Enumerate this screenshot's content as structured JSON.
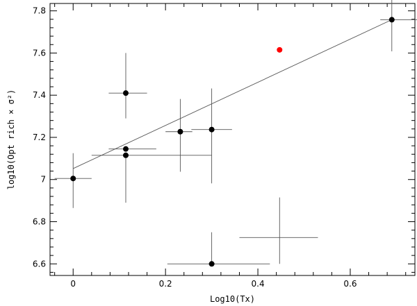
{
  "chart_data": {
    "type": "scatter",
    "xlabel": "Log10(Tx)",
    "ylabel": "log10(Opt rich × σ²)",
    "xlim": [
      -0.05,
      0.74
    ],
    "ylim": [
      6.545,
      7.835
    ],
    "x_ticks": [
      0,
      0.2,
      0.4,
      0.6
    ],
    "x_tick_labels": [
      "0",
      "0.2",
      "0.4",
      "0.6"
    ],
    "y_ticks": [
      6.6,
      6.8,
      7,
      7.2,
      7.4,
      7.6,
      7.8
    ],
    "y_tick_labels": [
      "6.6",
      "6.8",
      "7",
      "7.2",
      "7.4",
      "7.6",
      "7.8"
    ],
    "points": [
      {
        "x": 0.0,
        "y": 7.005,
        "xerr": [
          0.04,
          0.04
        ],
        "yerr": [
          0.14,
          0.12
        ],
        "marker": "filled-circle",
        "color": "#000000"
      },
      {
        "x": 0.114,
        "y": 7.41,
        "xerr": [
          0.037,
          0.046
        ],
        "yerr": [
          0.12,
          0.19
        ],
        "marker": "filled-circle",
        "color": "#000000"
      },
      {
        "x": 0.114,
        "y": 7.145,
        "xerr": [
          0.037,
          0.066
        ],
        "yerr": [
          0.0,
          0.0
        ],
        "marker": "filled-circle",
        "color": "#000000"
      },
      {
        "x": 0.114,
        "y": 7.115,
        "xerr": [
          0.074,
          0.186
        ],
        "yerr": [
          0.225,
          0.0
        ],
        "marker": "filled-circle",
        "color": "#000000"
      },
      {
        "x": 0.232,
        "y": 7.227,
        "xerr": [
          0.032,
          0.026
        ],
        "yerr": [
          0.19,
          0.155
        ],
        "marker": "filled-circle",
        "color": "#000000"
      },
      {
        "x": 0.3,
        "y": 7.237,
        "xerr": [
          0.044,
          0.044
        ],
        "yerr": [
          0.255,
          0.195
        ],
        "marker": "filled-circle",
        "color": "#000000"
      },
      {
        "x": 0.3,
        "y": 6.6,
        "xerr": [
          0.096,
          0.126
        ],
        "yerr": [
          0.0,
          0.15
        ],
        "marker": "filled-circle",
        "color": "#000000"
      },
      {
        "x": 0.447,
        "y": 7.615,
        "xerr": [
          0.0,
          0.0
        ],
        "yerr": [
          0.0,
          0.0
        ],
        "marker": "filled-circle",
        "color": "#ff0000"
      },
      {
        "x": 0.447,
        "y": 6.725,
        "xerr": [
          0.087,
          0.083
        ],
        "yerr": [
          0.125,
          0.19
        ],
        "marker": "none",
        "color": "#000000"
      },
      {
        "x": 0.69,
        "y": 7.758,
        "xerr": [
          0.025,
          0.055
        ],
        "yerr": [
          0.15,
          0.115
        ],
        "marker": "filled-circle",
        "color": "#000000"
      }
    ],
    "fit_line": {
      "x": [
        0.0,
        0.69
      ],
      "y": [
        7.052,
        7.758
      ]
    },
    "grid": false,
    "legend": "none"
  }
}
